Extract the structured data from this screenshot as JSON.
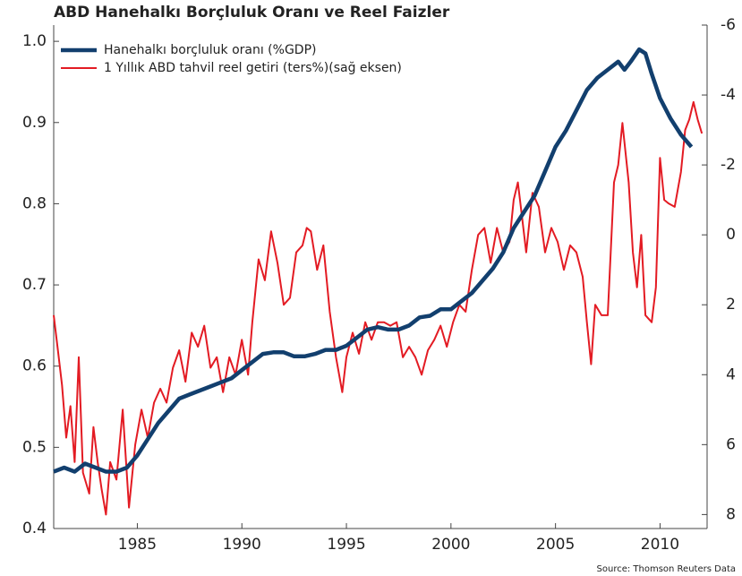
{
  "chart_data": {
    "type": "line",
    "title": "ABD Hanehalkı Borçluluk Oranı ve Reel Faizler",
    "source": "Source: Thomson Reuters Data",
    "legend": "upper left",
    "xlim": [
      1981,
      2012.25
    ],
    "xticks": [
      1985,
      1990,
      1995,
      2000,
      2005,
      2010
    ],
    "ylim": [
      0.4,
      1.02
    ],
    "yticks": [
      0.4,
      0.5,
      0.6,
      0.7,
      0.8,
      0.9,
      {
        "value": 1,
        "label": "1.0"
      }
    ],
    "y2lim": [
      8.4,
      -6
    ],
    "y2ticks": [
      -6,
      -4,
      -2,
      0,
      2,
      4,
      6,
      8
    ],
    "series": [
      {
        "name": "Hanehalkı borçluluk oranı (%GDP)",
        "color": "#123f6e",
        "axis": "y",
        "x": [
          1981,
          1981.5,
          1982,
          1982.5,
          1983,
          1983.5,
          1984,
          1984.5,
          1985,
          1985.5,
          1986,
          1986.5,
          1987,
          1987.5,
          1988,
          1988.5,
          1989,
          1989.5,
          1990,
          1990.5,
          1991,
          1991.5,
          1992,
          1992.5,
          1993,
          1993.5,
          1994,
          1994.5,
          1995,
          1995.5,
          1996,
          1996.5,
          1997,
          1997.5,
          1998,
          1998.5,
          1999,
          1999.5,
          2000,
          2000.5,
          2001,
          2001.5,
          2002,
          2002.5,
          2003,
          2003.5,
          2004,
          2004.5,
          2005,
          2005.5,
          2006,
          2006.5,
          2007,
          2007.5,
          2008,
          2008.3,
          2008.6,
          2009,
          2009.3,
          2009.6,
          2010,
          2010.5,
          2011,
          2011.5
        ],
        "values": [
          0.47,
          0.475,
          0.47,
          0.48,
          0.475,
          0.47,
          0.47,
          0.475,
          0.49,
          0.51,
          0.53,
          0.545,
          0.56,
          0.565,
          0.57,
          0.575,
          0.58,
          0.585,
          0.595,
          0.605,
          0.615,
          0.617,
          0.617,
          0.612,
          0.612,
          0.615,
          0.62,
          0.62,
          0.625,
          0.635,
          0.645,
          0.648,
          0.645,
          0.645,
          0.65,
          0.66,
          0.662,
          0.67,
          0.67,
          0.68,
          0.69,
          0.705,
          0.72,
          0.74,
          0.77,
          0.79,
          0.81,
          0.84,
          0.87,
          0.89,
          0.915,
          0.94,
          0.955,
          0.965,
          0.975,
          0.965,
          0.975,
          0.99,
          0.985,
          0.96,
          0.93,
          0.905,
          0.885,
          0.87
        ]
      },
      {
        "name": "1 Yıllık ABD tahvil reel getiri (ters%)(sağ eksen)",
        "color": "#e31b23",
        "axis": "y2",
        "x": [
          1981.0,
          1981.2,
          1981.4,
          1981.6,
          1981.8,
          1982.0,
          1982.2,
          1982.4,
          1982.7,
          1982.9,
          1983.1,
          1983.3,
          1983.5,
          1983.7,
          1984.0,
          1984.3,
          1984.6,
          1984.9,
          1985.2,
          1985.5,
          1985.8,
          1986.1,
          1986.4,
          1986.7,
          1987.0,
          1987.3,
          1987.6,
          1987.9,
          1988.2,
          1988.5,
          1988.8,
          1989.1,
          1989.4,
          1989.7,
          1990.0,
          1990.3,
          1990.5,
          1990.8,
          1991.1,
          1991.4,
          1991.7,
          1992.0,
          1992.3,
          1992.6,
          1992.9,
          1993.1,
          1993.3,
          1993.6,
          1993.9,
          1994.2,
          1994.5,
          1994.8,
          1995.0,
          1995.3,
          1995.6,
          1995.9,
          1996.2,
          1996.5,
          1996.8,
          1997.1,
          1997.4,
          1997.7,
          1998.0,
          1998.3,
          1998.6,
          1998.9,
          1999.2,
          1999.5,
          1999.8,
          2000.1,
          2000.4,
          2000.7,
          2001.0,
          2001.3,
          2001.6,
          2001.9,
          2002.2,
          2002.5,
          2002.8,
          2003.0,
          2003.2,
          2003.4,
          2003.6,
          2003.9,
          2004.2,
          2004.5,
          2004.8,
          2005.1,
          2005.4,
          2005.7,
          2006.0,
          2006.3,
          2006.5,
          2006.7,
          2006.9,
          2007.2,
          2007.5,
          2007.8,
          2008.0,
          2008.2,
          2008.5,
          2008.7,
          2008.9,
          2009.1,
          2009.3,
          2009.6,
          2009.8,
          2010.0,
          2010.2,
          2010.4,
          2010.7,
          2011.0,
          2011.2,
          2011.4,
          2011.6,
          2011.8,
          2012.0
        ],
        "values": [
          2.3,
          3.3,
          4.3,
          5.8,
          4.9,
          6.5,
          3.5,
          6.8,
          7.4,
          5.5,
          6.5,
          7.3,
          8.0,
          6.5,
          7.0,
          5.0,
          7.8,
          6.0,
          5.0,
          5.8,
          4.8,
          4.4,
          4.8,
          3.8,
          3.3,
          4.2,
          2.8,
          3.2,
          2.6,
          3.8,
          3.5,
          4.5,
          3.5,
          4.0,
          3.0,
          4.0,
          2.5,
          0.7,
          1.3,
          -0.1,
          0.8,
          2.0,
          1.8,
          0.5,
          0.3,
          -0.2,
          -0.1,
          1.0,
          0.3,
          2.2,
          3.5,
          4.5,
          3.5,
          2.8,
          3.4,
          2.5,
          3.0,
          2.5,
          2.5,
          2.6,
          2.5,
          3.5,
          3.2,
          3.5,
          4.0,
          3.3,
          3.0,
          2.6,
          3.2,
          2.5,
          2.0,
          2.2,
          1.0,
          0.0,
          -0.2,
          0.8,
          -0.2,
          0.5,
          0.2,
          -1.0,
          -1.5,
          -0.5,
          0.5,
          -1.2,
          -0.8,
          0.5,
          -0.2,
          0.2,
          1.0,
          0.3,
          0.5,
          1.2,
          2.5,
          3.7,
          2.0,
          2.3,
          2.3,
          -1.5,
          -2.0,
          -3.2,
          -1.5,
          0.5,
          1.5,
          0.0,
          2.3,
          2.5,
          1.5,
          -2.2,
          -1.0,
          -0.9,
          -0.8,
          -1.8,
          -3.0,
          -3.3,
          -3.8,
          -3.3,
          -2.9
        ]
      }
    ]
  }
}
